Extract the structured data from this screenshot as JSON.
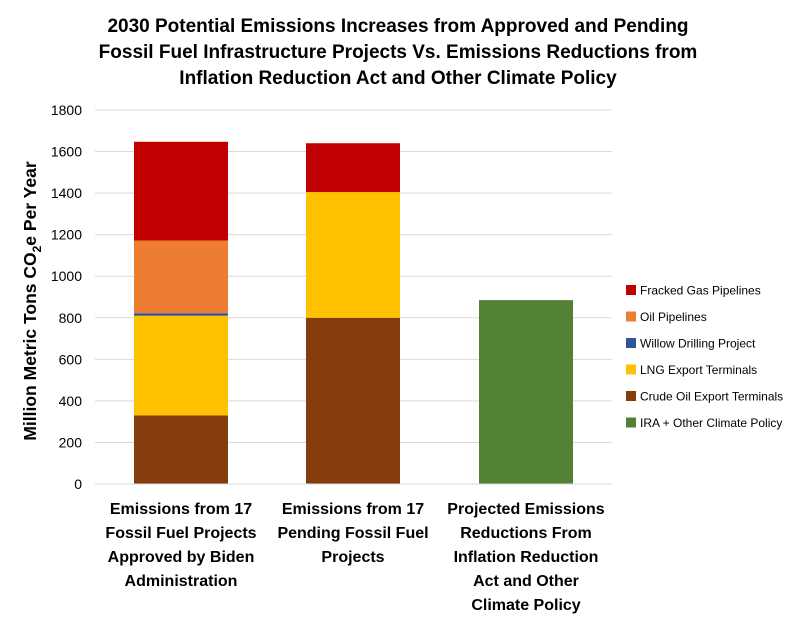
{
  "chart_data": {
    "type": "bar",
    "stacked": true,
    "title": "2030 Potential Emissions Increases from Approved and Pending Fossil Fuel Infrastructure Projects Vs. Emissions Reductions from Inflation Reduction Act and Other Climate Policy",
    "title_lines": [
      "2030 Potential Emissions Increases from Approved and Pending",
      "Fossil Fuel Infrastructure Projects Vs. Emissions Reductions from",
      "Inflation Reduction Act and Other Climate Policy"
    ],
    "ylabel_prefix": "Million Metric Tons CO",
    "ylabel_sub": "2",
    "ylabel_suffix": "e Per Year",
    "ylim": [
      0,
      1800
    ],
    "yticks": [
      0,
      200,
      400,
      600,
      800,
      1000,
      1200,
      1400,
      1600,
      1800
    ],
    "grid": true,
    "legend_position": "right",
    "categories": [
      "Emissions from 17 Fossil Fuel Projects Approved by Biden Administration",
      "Emissions from 17 Pending Fossil Fuel Projects",
      "Projected Emissions Reductions From Inflation Reduction Act and Other Climate Policy"
    ],
    "category_lines": [
      [
        "Emissions from 17",
        "Fossil Fuel Projects",
        "Approved by Biden",
        "Administration"
      ],
      [
        "Emissions from 17",
        "Pending Fossil Fuel",
        "Projects"
      ],
      [
        "Projected Emissions",
        "Reductions From",
        "Inflation Reduction",
        "Act and Other",
        "Climate Policy"
      ]
    ],
    "series": [
      {
        "name": "Crude Oil Export Terminals",
        "color": "#843c0c",
        "values": [
          330,
          800,
          0
        ]
      },
      {
        "name": "LNG Export Terminals",
        "color": "#ffc000",
        "values": [
          480,
          605,
          0
        ]
      },
      {
        "name": "Willow Drilling Project",
        "color": "#2f5597",
        "values": [
          12,
          0,
          0
        ]
      },
      {
        "name": "Oil Pipelines",
        "color": "#ed7d31",
        "values": [
          350,
          0,
          0
        ]
      },
      {
        "name": "Fracked Gas Pipelines",
        "color": "#c00000",
        "values": [
          475,
          235,
          0
        ]
      },
      {
        "name": "IRA + Other Climate Policy",
        "color": "#548235",
        "values": [
          0,
          0,
          885
        ]
      }
    ],
    "legend_order": [
      "Fracked Gas Pipelines",
      "Oil Pipelines",
      "Willow Drilling Project",
      "LNG Export Terminals",
      "Crude Oil Export Terminals",
      "IRA + Other Climate Policy"
    ]
  }
}
